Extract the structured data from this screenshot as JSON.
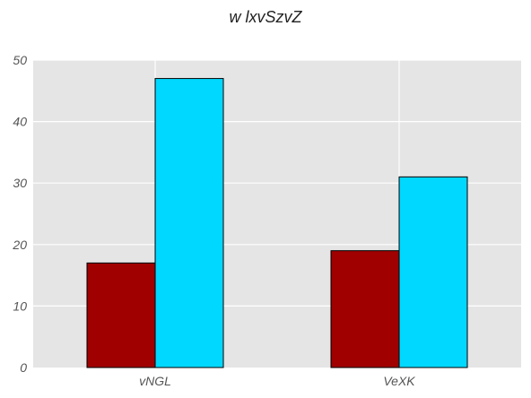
{
  "chart_data": {
    "type": "bar",
    "title": "w lxvSzvZ",
    "xlabel": "",
    "ylabel": "",
    "categories": [
      "vNGL",
      "VeXK"
    ],
    "series": [
      {
        "values": [
          17,
          19
        ],
        "color": "#a00000"
      },
      {
        "values": [
          47,
          31
        ],
        "color": "#00d8ff"
      }
    ],
    "ylim": [
      0,
      50
    ],
    "yticks": [
      0,
      10,
      20,
      30,
      40,
      50
    ],
    "grid": true,
    "background": "#e5e5e5",
    "legend": "none"
  }
}
